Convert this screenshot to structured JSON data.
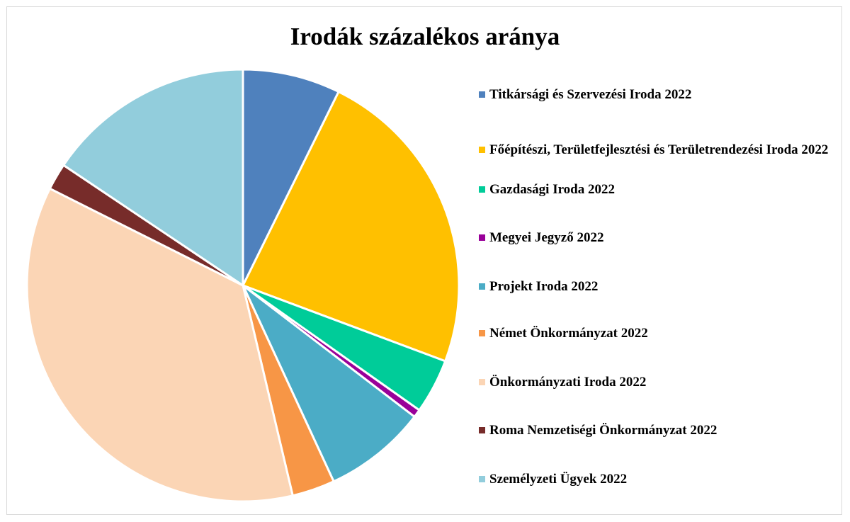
{
  "chart_data": {
    "type": "pie",
    "title": "Irodák százalékos aránya",
    "categories": [
      "Titkársági és Szervezési Iroda 2022",
      "Főépítészi, Területfejlesztési és Területrendezési Iroda 2022",
      "Gazdasági Iroda 2022",
      "Megyei Jegyző 2022",
      "Projekt Iroda 2022",
      "Német Önkormányzat 2022",
      "Önkormányzati Iroda 2022",
      "Roma Nemzetiségi Önkormányzat 2022",
      "Személyzeti Ügyek 2022"
    ],
    "values": [
      7.3,
      23.4,
      4.1,
      0.6,
      7.7,
      3.2,
      36.1,
      2.0,
      15.6
    ],
    "colors": [
      "#4f81bd",
      "#ffc000",
      "#00cc99",
      "#990099",
      "#4bacc6",
      "#f79646",
      "#fbd5b5",
      "#772c2a",
      "#92cddc"
    ],
    "legend": "right"
  }
}
